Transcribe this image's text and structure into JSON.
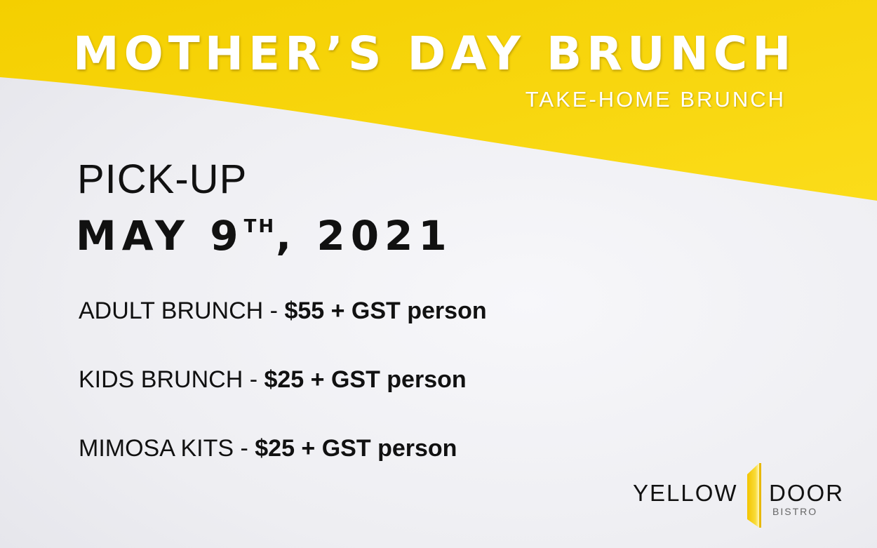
{
  "header": {
    "title": "MOTHER’S DAY BRUNCH",
    "subtitle": "TAKE-HOME BRUNCH"
  },
  "pickup": {
    "label": "PICK-UP",
    "date_main": "MAY 9",
    "date_suffix": "TH",
    "date_year": ", 2021"
  },
  "items": [
    {
      "name": "ADULT BRUNCH - ",
      "price": "$55 + GST person"
    },
    {
      "name": "KIDS BRUNCH - ",
      "price": "$25 + GST person"
    },
    {
      "name": "MIMOSA KITS - ",
      "price": "$25 + GST person"
    }
  ],
  "logo": {
    "word1": "YELLOW",
    "word2": "DOOR",
    "word3": "BISTRO"
  },
  "colors": {
    "brand_yellow": "#f6d20a",
    "text": "#111111"
  }
}
